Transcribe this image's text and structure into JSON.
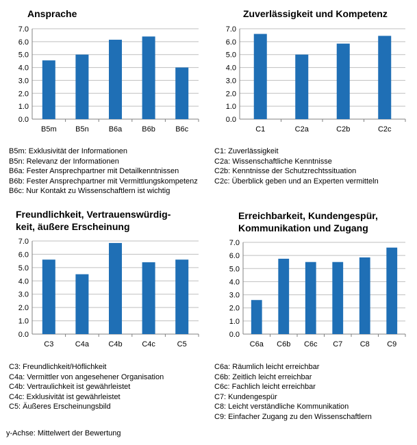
{
  "chart_data": [
    {
      "type": "bar",
      "title_lines": [
        "Ansprache"
      ],
      "categories": [
        "B5m",
        "B5n",
        "B6a",
        "B6b",
        "B6c"
      ],
      "values": [
        4.55,
        5.0,
        6.15,
        6.4,
        4.0
      ],
      "ylim": [
        0,
        7
      ],
      "yticks": [
        "0.0",
        "1.0",
        "2.0",
        "3.0",
        "4.0",
        "5.0",
        "6.0",
        "7.0"
      ],
      "grid": "horizontal",
      "legend": [
        "B5m: Exklusivität der Informationen",
        "B5n: Relevanz der Informationen",
        "B6a: Fester Ansprechpartner mit Detailkenntnissen",
        "B6b: Fester Ansprechpartner mit Vermittlungskompetenz",
        "B6c: Nur Kontakt zu Wissenschaftlern ist wichtig"
      ]
    },
    {
      "type": "bar",
      "title_lines": [
        "Zuverlässigkeit und Kompetenz"
      ],
      "categories": [
        "C1",
        "C2a",
        "C2b",
        "C2c"
      ],
      "values": [
        6.6,
        5.0,
        5.85,
        6.45
      ],
      "ylim": [
        0,
        7
      ],
      "yticks": [
        "0.0",
        "1.0",
        "2.0",
        "3.0",
        "4.0",
        "5.0",
        "6.0",
        "7.0"
      ],
      "grid": "horizontal",
      "legend": [
        "C1: Zuverlässigkeit",
        "C2a: Wissenschaftliche Kenntnisse",
        "C2b: Kenntnisse der Schutzrechtssituation",
        "C2c: Überblick geben und an Experten vermitteln"
      ]
    },
    {
      "type": "bar",
      "title_lines": [
        "Freundlichkeit, Vertrauenswürdig-",
        "keit, äußere Erscheinung"
      ],
      "categories": [
        "C3",
        "C4a",
        "C4b",
        "C4c",
        "C5"
      ],
      "values": [
        5.6,
        4.5,
        6.85,
        5.4,
        5.6
      ],
      "ylim": [
        0,
        7
      ],
      "yticks": [
        "0.0",
        "1.0",
        "2.0",
        "3.0",
        "4.0",
        "5.0",
        "6.0",
        "7.0"
      ],
      "grid": "horizontal",
      "legend": [
        "C3: Freundlichkeit/Höflichkeit",
        "C4a: Vermittler von angesehener Organisation",
        "C4b: Vertraulichkeit ist gewährleistet",
        "C4c: Exklusivität ist gewährleistet",
        "C5: Äußeres Erscheinungsbild"
      ]
    },
    {
      "type": "bar",
      "title_lines": [
        "Erreichbarkeit, Kundengespür,",
        "Kommunikation und Zugang"
      ],
      "categories": [
        "C6a",
        "C6b",
        "C6c",
        "C7",
        "C8",
        "C9"
      ],
      "values": [
        2.6,
        5.75,
        5.5,
        5.5,
        5.85,
        6.6
      ],
      "ylim": [
        0,
        7
      ],
      "yticks": [
        "0.0",
        "1.0",
        "2.0",
        "3.0",
        "4.0",
        "5.0",
        "6.0",
        "7.0"
      ],
      "grid": "horizontal",
      "legend": [
        "C6a: Räumlich leicht erreichbar",
        "C6b: Zeitlich leicht erreichbar",
        "C6c: Fachlich leicht erreichbar",
        "C7: Kundengespür",
        "C8: Leicht verständliche Kommunikation",
        "C9: Einfacher Zugang zu den Wissenschaftlern"
      ]
    }
  ],
  "footnote": "y-Achse: Mittelwert der Bewertung",
  "colors": {
    "bar": "#1f6fb5",
    "grid": "#bfbfbf",
    "axis": "#808080"
  }
}
